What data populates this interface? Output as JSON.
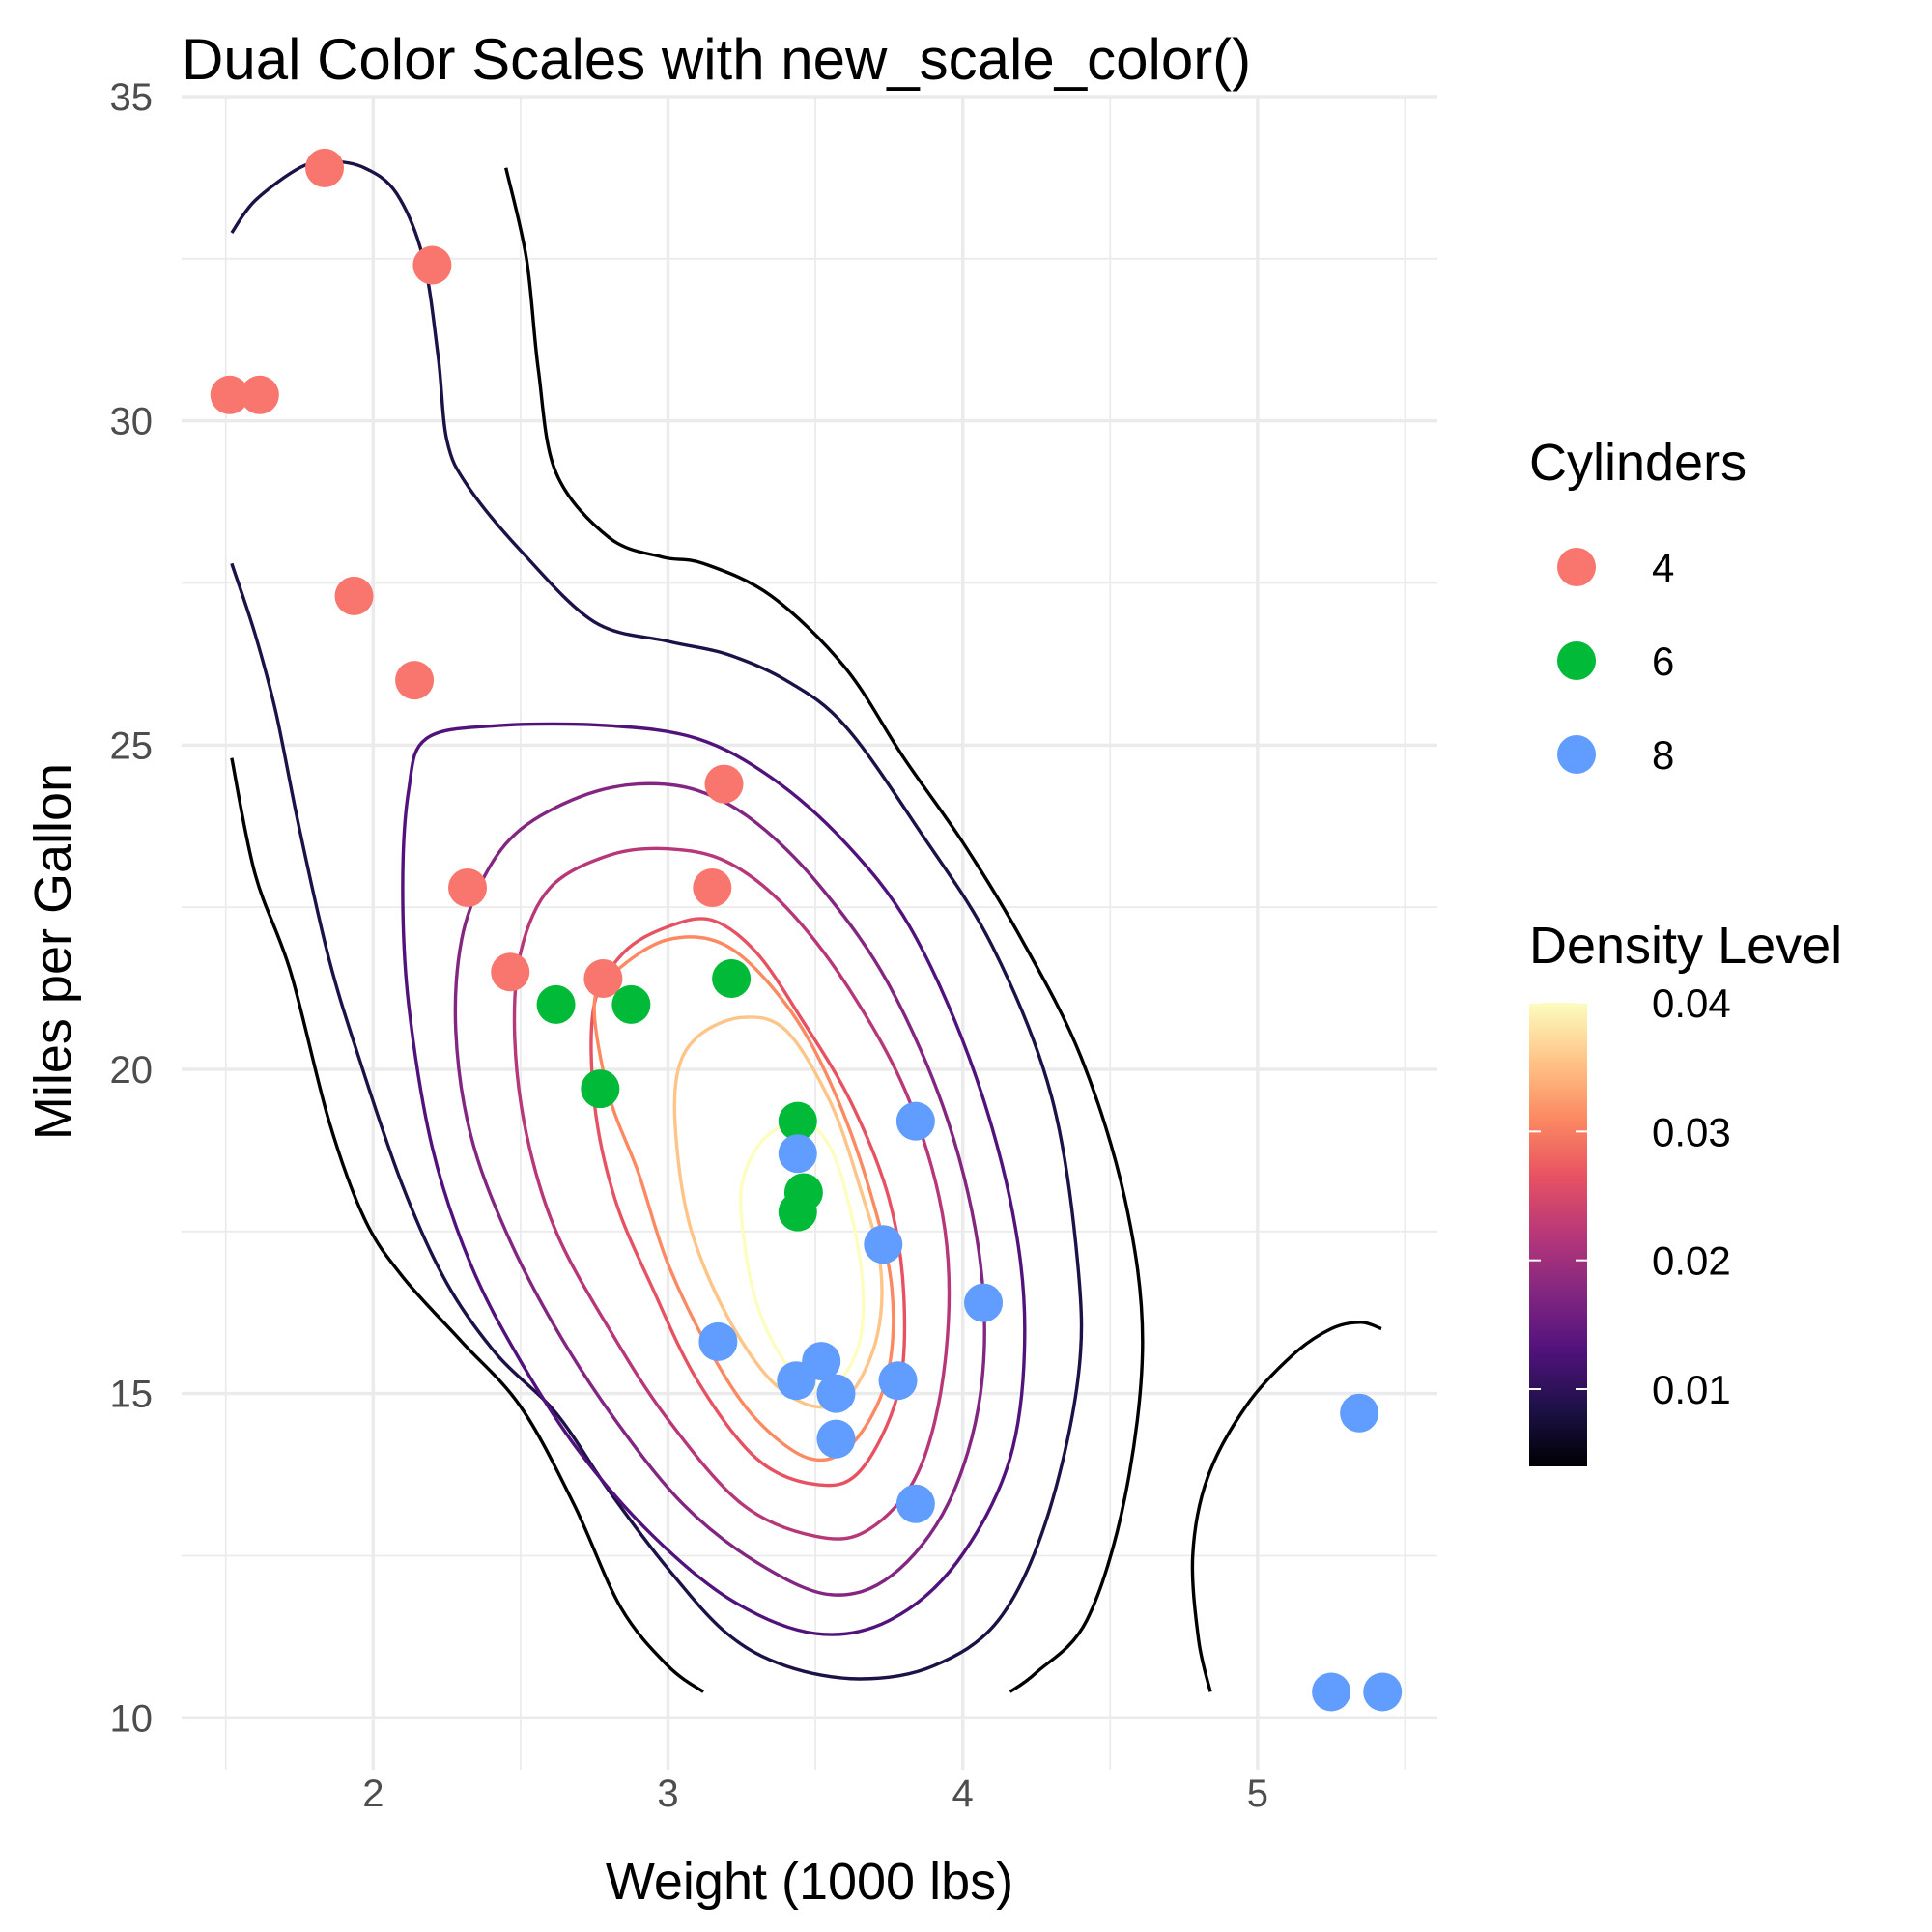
{
  "chart_data": {
    "type": "scatter",
    "title": "Dual Color Scales with new_scale_color()",
    "xlabel": "Weight (1000 lbs)",
    "ylabel": "Miles per Gallon",
    "xlim": [
      1.35,
      5.61
    ],
    "ylim": [
      9.2,
      35.0
    ],
    "x_ticks": [
      2,
      3,
      4,
      5
    ],
    "y_ticks": [
      10,
      15,
      20,
      25,
      30,
      35
    ],
    "x_minor": [
      1.5,
      2.5,
      3.5,
      4.5,
      5.5
    ],
    "y_minor": [
      12.5,
      17.5,
      22.5,
      27.5,
      32.5
    ],
    "grid": true,
    "series": [
      {
        "name": "4",
        "color": "#F8766D",
        "points": [
          [
            1.835,
            33.9
          ],
          [
            2.2,
            32.4
          ],
          [
            1.513,
            30.4
          ],
          [
            1.615,
            30.4
          ],
          [
            1.935,
            27.3
          ],
          [
            2.14,
            26.0
          ],
          [
            3.19,
            24.4
          ],
          [
            2.32,
            22.8
          ],
          [
            3.15,
            22.8
          ],
          [
            2.465,
            21.5
          ],
          [
            2.78,
            21.4
          ]
        ]
      },
      {
        "name": "6",
        "color": "#00BA38",
        "points": [
          [
            2.62,
            21.0
          ],
          [
            2.875,
            21.0
          ],
          [
            3.215,
            21.4
          ],
          [
            2.77,
            19.7
          ],
          [
            3.44,
            19.2
          ],
          [
            3.46,
            18.1
          ],
          [
            3.44,
            17.8
          ]
        ]
      },
      {
        "name": "8",
        "color": "#619CFF",
        "points": [
          [
            3.44,
            18.7
          ],
          [
            3.84,
            19.2
          ],
          [
            3.73,
            17.3
          ],
          [
            4.07,
            16.4
          ],
          [
            3.17,
            15.8
          ],
          [
            3.52,
            15.5
          ],
          [
            3.435,
            15.2
          ],
          [
            3.78,
            15.2
          ],
          [
            3.57,
            15.0
          ],
          [
            3.57,
            14.3
          ],
          [
            3.84,
            13.3
          ],
          [
            5.345,
            14.7
          ],
          [
            5.25,
            10.4
          ],
          [
            5.424,
            10.4
          ]
        ]
      }
    ],
    "legends": [
      {
        "title": "Cylinders",
        "entries": [
          "4",
          "6",
          "8"
        ]
      },
      {
        "title": "Density Level",
        "type": "colorbar",
        "range": [
          0.004,
          0.04
        ],
        "ticks": [
          "0.01",
          "0.02",
          "0.03",
          "0.04"
        ],
        "palette": [
          "#000004",
          "#1d1147",
          "#51127c",
          "#832681",
          "#b73779",
          "#e75263",
          "#fc8961",
          "#fec488",
          "#fcfdbf"
        ]
      }
    ],
    "legend_position": "right",
    "contours": [
      {
        "level": 0.004,
        "color": "#000004",
        "paths": [
          [
            [
              1.52,
              24.8
            ],
            [
              1.6,
              23.0
            ],
            [
              1.72,
              21.5
            ],
            [
              1.85,
              19.2
            ],
            [
              1.97,
              17.7
            ],
            [
              2.1,
              16.8
            ],
            [
              2.3,
              15.8
            ],
            [
              2.5,
              14.8
            ],
            [
              2.68,
              13.3
            ],
            [
              2.84,
              11.7
            ],
            [
              3.0,
              10.8
            ],
            [
              3.12,
              10.4
            ]
          ],
          [
            [
              2.45,
              33.9
            ],
            [
              2.52,
              32.5
            ],
            [
              2.56,
              30.8
            ],
            [
              2.62,
              29.2
            ],
            [
              2.8,
              28.2
            ],
            [
              2.98,
              27.9
            ],
            [
              3.12,
              27.8
            ],
            [
              3.35,
              27.3
            ],
            [
              3.6,
              26.2
            ],
            [
              3.8,
              24.8
            ],
            [
              4.0,
              23.5
            ],
            [
              4.2,
              22.0
            ],
            [
              4.4,
              20.2
            ],
            [
              4.55,
              18.0
            ],
            [
              4.61,
              15.8
            ],
            [
              4.55,
              13.4
            ],
            [
              4.42,
              11.5
            ],
            [
              4.25,
              10.7
            ],
            [
              4.16,
              10.4
            ]
          ],
          [
            [
              4.84,
              10.4
            ],
            [
              4.8,
              11.2
            ],
            [
              4.78,
              12.5
            ],
            [
              4.83,
              13.7
            ],
            [
              4.96,
              14.8
            ],
            [
              5.12,
              15.6
            ],
            [
              5.25,
              16.0
            ],
            [
              5.35,
              16.1
            ],
            [
              5.42,
              16.0
            ]
          ]
        ]
      },
      {
        "level": 0.008,
        "color": "#1d1147",
        "paths": [
          [
            [
              1.52,
              32.9
            ],
            [
              1.6,
              33.4
            ],
            [
              1.75,
              33.9
            ],
            [
              1.85,
              34.0
            ],
            [
              1.97,
              33.9
            ],
            [
              2.08,
              33.5
            ],
            [
              2.17,
              32.5
            ],
            [
              2.22,
              31.0
            ],
            [
              2.25,
              29.7
            ],
            [
              2.32,
              29.0
            ],
            [
              2.5,
              28.0
            ],
            [
              2.75,
              26.9
            ],
            [
              3.0,
              26.6
            ],
            [
              3.2,
              26.4
            ],
            [
              3.4,
              26.0
            ],
            [
              3.6,
              25.3
            ],
            [
              3.85,
              23.7
            ],
            [
              4.1,
              21.9
            ],
            [
              4.3,
              19.6
            ],
            [
              4.39,
              17.0
            ],
            [
              4.39,
              15.2
            ],
            [
              4.28,
              13.0
            ],
            [
              4.12,
              11.5
            ],
            [
              3.9,
              10.8
            ],
            [
              3.65,
              10.6
            ],
            [
              3.4,
              10.8
            ],
            [
              3.2,
              11.3
            ],
            [
              3.0,
              12.3
            ],
            [
              2.8,
              13.5
            ],
            [
              2.62,
              14.7
            ],
            [
              2.42,
              15.6
            ],
            [
              2.25,
              16.7
            ],
            [
              2.1,
              18.2
            ],
            [
              1.95,
              20.2
            ],
            [
              1.85,
              21.7
            ],
            [
              1.75,
              23.7
            ],
            [
              1.67,
              25.5
            ],
            [
              1.6,
              26.7
            ],
            [
              1.52,
              27.8
            ]
          ]
        ]
      },
      {
        "level": 0.012,
        "color": "#51127c",
        "paths": [
          [
            [
              2.18,
              25.1
            ],
            [
              2.42,
              25.3
            ],
            [
              2.8,
              25.3
            ],
            [
              3.1,
              25.1
            ],
            [
              3.35,
              24.5
            ],
            [
              3.6,
              23.5
            ],
            [
              3.82,
              22.2
            ],
            [
              4.02,
              20.2
            ],
            [
              4.16,
              18.0
            ],
            [
              4.21,
              16.0
            ],
            [
              4.16,
              14.0
            ],
            [
              3.98,
              12.4
            ],
            [
              3.75,
              11.5
            ],
            [
              3.5,
              11.3
            ],
            [
              3.22,
              11.8
            ],
            [
              2.95,
              12.8
            ],
            [
              2.7,
              14.1
            ],
            [
              2.5,
              15.5
            ],
            [
              2.33,
              17.0
            ],
            [
              2.2,
              18.8
            ],
            [
              2.12,
              21.0
            ],
            [
              2.1,
              22.8
            ],
            [
              2.12,
              24.3
            ],
            [
              2.18,
              25.1
            ]
          ]
        ]
      },
      {
        "level": 0.016,
        "color": "#832681",
        "paths": [
          [
            [
              2.5,
              23.7
            ],
            [
              2.7,
              24.2
            ],
            [
              2.9,
              24.4
            ],
            [
              3.1,
              24.3
            ],
            [
              3.3,
              23.8
            ],
            [
              3.52,
              22.8
            ],
            [
              3.75,
              21.3
            ],
            [
              3.95,
              19.2
            ],
            [
              4.06,
              17.0
            ],
            [
              4.06,
              15.0
            ],
            [
              3.95,
              13.3
            ],
            [
              3.76,
              12.2
            ],
            [
              3.55,
              11.9
            ],
            [
              3.3,
              12.4
            ],
            [
              3.05,
              13.3
            ],
            [
              2.82,
              14.6
            ],
            [
              2.62,
              16.0
            ],
            [
              2.45,
              17.5
            ],
            [
              2.33,
              19.0
            ],
            [
              2.28,
              20.6
            ],
            [
              2.3,
              22.0
            ],
            [
              2.38,
              23.0
            ],
            [
              2.5,
              23.7
            ]
          ]
        ]
      },
      {
        "level": 0.02,
        "color": "#b73779",
        "paths": [
          [
            [
              2.6,
              22.8
            ],
            [
              2.8,
              23.3
            ],
            [
              3.0,
              23.4
            ],
            [
              3.2,
              23.2
            ],
            [
              3.4,
              22.5
            ],
            [
              3.62,
              21.2
            ],
            [
              3.82,
              19.5
            ],
            [
              3.94,
              17.5
            ],
            [
              3.94,
              15.5
            ],
            [
              3.85,
              13.8
            ],
            [
              3.68,
              12.9
            ],
            [
              3.5,
              12.8
            ],
            [
              3.25,
              13.3
            ],
            [
              3.0,
              14.6
            ],
            [
              2.8,
              16.0
            ],
            [
              2.62,
              17.5
            ],
            [
              2.52,
              19.0
            ],
            [
              2.48,
              20.5
            ],
            [
              2.5,
              21.8
            ],
            [
              2.6,
              22.8
            ]
          ]
        ]
      },
      {
        "level": 0.024,
        "color": "#e75263",
        "paths": [
          [
            [
              2.75,
              21.0
            ],
            [
              2.85,
              21.8
            ],
            [
              3.0,
              22.2
            ],
            [
              3.15,
              22.3
            ],
            [
              3.3,
              21.8
            ],
            [
              3.45,
              20.8
            ],
            [
              3.62,
              19.5
            ],
            [
              3.75,
              18.0
            ],
            [
              3.8,
              16.5
            ],
            [
              3.78,
              15.0
            ],
            [
              3.65,
              13.8
            ],
            [
              3.5,
              13.6
            ],
            [
              3.3,
              14.0
            ],
            [
              3.1,
              15.2
            ],
            [
              2.95,
              16.6
            ],
            [
              2.82,
              18.0
            ],
            [
              2.75,
              19.5
            ],
            [
              2.75,
              21.0
            ]
          ]
        ]
      },
      {
        "level": 0.028,
        "color": "#fc8961",
        "paths": [
          [
            [
              2.75,
              21.0
            ],
            [
              2.82,
              21.5
            ],
            [
              3.0,
              22.0
            ],
            [
              3.2,
              21.9
            ],
            [
              3.4,
              21.0
            ],
            [
              3.55,
              19.8
            ],
            [
              3.68,
              18.2
            ],
            [
              3.76,
              16.6
            ],
            [
              3.74,
              15.2
            ],
            [
              3.62,
              14.2
            ],
            [
              3.48,
              14.0
            ],
            [
              3.3,
              14.6
            ],
            [
              3.15,
              15.6
            ],
            [
              3.0,
              17.0
            ],
            [
              2.9,
              18.4
            ],
            [
              2.8,
              19.6
            ],
            [
              2.75,
              21.0
            ]
          ]
        ]
      },
      {
        "level": 0.032,
        "color": "#fec488",
        "paths": [
          [
            [
              3.03,
              19.9
            ],
            [
              3.1,
              20.5
            ],
            [
              3.25,
              20.8
            ],
            [
              3.4,
              20.6
            ],
            [
              3.55,
              19.5
            ],
            [
              3.65,
              18.2
            ],
            [
              3.72,
              17.0
            ],
            [
              3.71,
              15.9
            ],
            [
              3.62,
              15.0
            ],
            [
              3.5,
              14.8
            ],
            [
              3.35,
              15.2
            ],
            [
              3.2,
              16.2
            ],
            [
              3.08,
              17.5
            ],
            [
              3.03,
              18.8
            ],
            [
              3.03,
              19.9
            ]
          ]
        ]
      },
      {
        "level": 0.036,
        "color": "#fcfdbf",
        "paths": [
          [
            [
              3.25,
              18.2
            ],
            [
              3.32,
              18.9
            ],
            [
              3.45,
              19.2
            ],
            [
              3.55,
              18.8
            ],
            [
              3.62,
              17.8
            ],
            [
              3.66,
              16.7
            ],
            [
              3.65,
              15.8
            ],
            [
              3.58,
              15.2
            ],
            [
              3.48,
              15.1
            ],
            [
              3.38,
              15.6
            ],
            [
              3.3,
              16.4
            ],
            [
              3.26,
              17.3
            ],
            [
              3.25,
              18.2
            ]
          ]
        ]
      }
    ]
  }
}
